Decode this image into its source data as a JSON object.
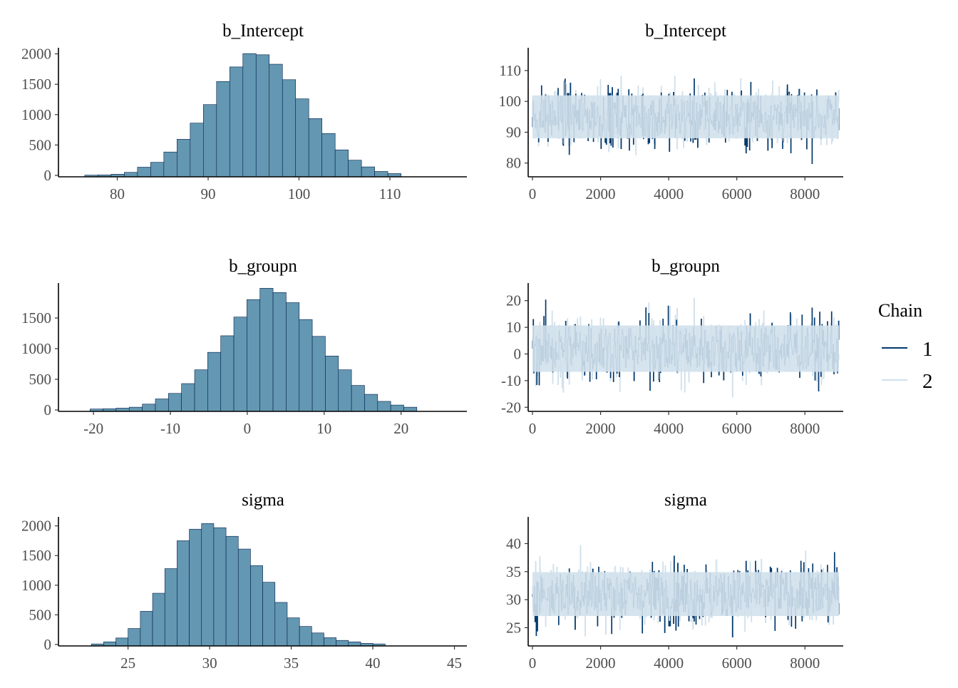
{
  "colors": {
    "bar_fill": "#6497b1",
    "bar_outline": "#011f4b",
    "chain_1": "#03396c",
    "chain_2": "#d1e1ec"
  },
  "legend": {
    "title": "Chain",
    "position": "right",
    "items": [
      {
        "label": "1",
        "color": "#03396c"
      },
      {
        "label": "2",
        "color": "#d1e1ec"
      }
    ]
  },
  "chart_data": [
    {
      "type": "bar",
      "title": "b_Intercept",
      "xlim": [
        74,
        118
      ],
      "ylim": [
        0,
        2030
      ],
      "x_ticks": [
        "80",
        "90",
        "100",
        "110"
      ],
      "y_ticks": [
        "0",
        "500",
        "1000",
        "1500",
        "2000"
      ],
      "bins_x": [
        77.15,
        78.6,
        80.05,
        81.5,
        82.95,
        84.4,
        85.85,
        87.3,
        88.75,
        90.2,
        91.65,
        93.1,
        94.55,
        96.0,
        97.45,
        98.9,
        100.35,
        101.8,
        103.25,
        104.7,
        106.15,
        107.6,
        109.05,
        110.5
      ],
      "values": [
        4,
        8,
        20,
        50,
        135,
        215,
        385,
        595,
        860,
        1165,
        1545,
        1785,
        2005,
        1985,
        1830,
        1575,
        1260,
        935,
        690,
        420,
        250,
        140,
        65,
        30
      ]
    },
    {
      "type": "line",
      "title": "b_Intercept",
      "xlim": [
        0,
        9000
      ],
      "ylim": [
        76,
        116
      ],
      "x_ticks": [
        "0",
        "2000",
        "4000",
        "6000",
        "8000"
      ],
      "y_ticks": [
        "80",
        "90",
        "100",
        "110"
      ],
      "series": [
        {
          "name": "1",
          "center": 95,
          "spread": 4.8,
          "min": 76,
          "max": 116
        },
        {
          "name": "2",
          "center": 95,
          "spread": 4.8,
          "min": 76,
          "max": 116
        }
      ]
    },
    {
      "type": "bar",
      "title": "b_groupn",
      "xlim": [
        -24,
        28
      ],
      "ylim": [
        0,
        2000
      ],
      "x_ticks": [
        "-20",
        "-10",
        "0",
        "10",
        "20"
      ],
      "y_ticks": [
        "0",
        "500",
        "1000",
        "1500"
      ],
      "bins_x": [
        -19.6,
        -17.9,
        -16.2,
        -14.5,
        -12.8,
        -11.1,
        -9.4,
        -7.7,
        -6.0,
        -4.3,
        -2.6,
        -0.9,
        0.8,
        2.5,
        4.2,
        5.9,
        7.6,
        9.3,
        11.0,
        12.7,
        14.4,
        16.1,
        17.8,
        19.5,
        21.2
      ],
      "values": [
        15,
        20,
        30,
        45,
        95,
        180,
        270,
        430,
        655,
        940,
        1210,
        1515,
        1800,
        1985,
        1915,
        1750,
        1475,
        1200,
        880,
        655,
        400,
        255,
        140,
        80,
        45
      ]
    },
    {
      "type": "line",
      "title": "b_groupn",
      "xlim": [
        0,
        9000
      ],
      "ylim": [
        -21,
        25
      ],
      "x_ticks": [
        "0",
        "2000",
        "4000",
        "6000",
        "8000"
      ],
      "y_ticks": [
        "-20",
        "-10",
        "0",
        "10",
        "20"
      ],
      "series": [
        {
          "name": "1",
          "center": 2,
          "spread": 6,
          "min": -21,
          "max": 25
        },
        {
          "name": "2",
          "center": 2,
          "spread": 6,
          "min": -21,
          "max": 25
        }
      ]
    },
    {
      "type": "bar",
      "title": "sigma",
      "xlim": [
        21,
        45.5
      ],
      "ylim": [
        0,
        2080
      ],
      "x_ticks": [
        "25",
        "30",
        "35",
        "40",
        "45"
      ],
      "y_ticks": [
        "0",
        "500",
        "1000",
        "1500",
        "2000"
      ],
      "bins_x": [
        23.13,
        23.88,
        24.63,
        25.38,
        26.13,
        26.88,
        27.63,
        28.38,
        29.13,
        29.88,
        30.63,
        31.38,
        32.13,
        32.88,
        33.63,
        34.38,
        35.13,
        35.88,
        36.63,
        37.38,
        38.13,
        38.88,
        39.63,
        40.38
      ],
      "values": [
        10,
        45,
        110,
        270,
        560,
        865,
        1280,
        1750,
        1945,
        2040,
        1970,
        1825,
        1610,
        1330,
        1050,
        710,
        450,
        305,
        195,
        115,
        70,
        45,
        20,
        10
      ]
    },
    {
      "type": "line",
      "title": "sigma",
      "xlim": [
        0,
        9000
      ],
      "ylim": [
        22,
        44
      ],
      "x_ticks": [
        "0",
        "2000",
        "4000",
        "6000",
        "8000"
      ],
      "y_ticks": [
        "25",
        "30",
        "35",
        "40"
      ],
      "series": [
        {
          "name": "1",
          "center": 31,
          "spread": 2.7,
          "min": 22,
          "max": 44
        },
        {
          "name": "2",
          "center": 31,
          "spread": 2.7,
          "min": 22,
          "max": 44
        }
      ]
    }
  ]
}
